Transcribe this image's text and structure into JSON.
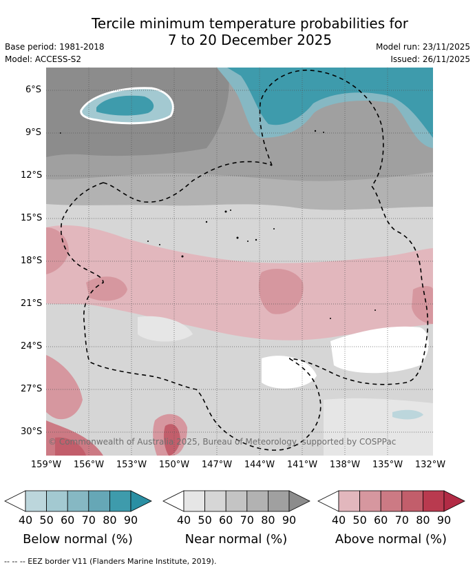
{
  "title_line1": "Tercile minimum temperature probabilities for",
  "title_line2": "7 to 20 December 2025",
  "base_period": "Base period: 1981-2018",
  "model": "Model: ACCESS-S2",
  "model_run": "Model run: 23/11/2025",
  "issued": "Issued: 26/11/2025",
  "copyright": "© Commonwealth of Australia 2025, Bureau of Meteorology, supported by COSPPac",
  "latitude_labels": [
    "6°S",
    "9°S",
    "12°S",
    "15°S",
    "18°S",
    "21°S",
    "24°S",
    "27°S",
    "30°S"
  ],
  "longitude_labels": [
    "159°W",
    "156°W",
    "153°W",
    "150°W",
    "147°W",
    "144°W",
    "141°W",
    "138°W",
    "135°W",
    "132°W"
  ],
  "legend": {
    "ticks": [
      "40",
      "50",
      "60",
      "70",
      "80",
      "90"
    ],
    "below": {
      "title": "Below normal (%)",
      "colors": [
        "#ffffff",
        "#bcd6dc",
        "#a3c9d1",
        "#86b8c3",
        "#66a7b6",
        "#3e9bac",
        "#2a8fa3"
      ]
    },
    "near": {
      "title": "Near normal (%)",
      "colors": [
        "#ffffff",
        "#e6e6e6",
        "#d6d6d6",
        "#c4c4c4",
        "#b2b2b2",
        "#a0a0a0",
        "#8c8c8c"
      ]
    },
    "above": {
      "title": "Above normal (%)",
      "colors": [
        "#ffffff",
        "#e2b7bd",
        "#d6979f",
        "#cc7a84",
        "#c25e6b",
        "#b93a4f",
        "#b22b45"
      ]
    }
  },
  "footnote": "-- -- -- EEZ border V11 (Flanders Marine Institute, 2019)."
}
